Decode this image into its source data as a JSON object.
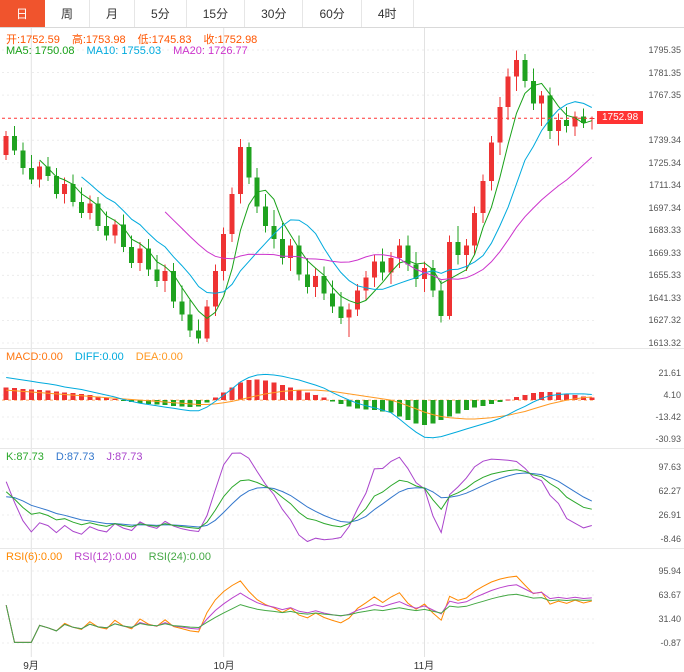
{
  "tabbar": {
    "tabs": [
      {
        "id": "day",
        "label": "日",
        "active": true
      },
      {
        "id": "week",
        "label": "周",
        "active": false
      },
      {
        "id": "month",
        "label": "月",
        "active": false
      },
      {
        "id": "min5",
        "label": "5分",
        "active": false
      },
      {
        "id": "min15",
        "label": "15分",
        "active": false
      },
      {
        "id": "min30",
        "label": "30分",
        "active": false
      },
      {
        "id": "min60",
        "label": "60分",
        "active": false
      },
      {
        "id": "hour4",
        "label": "4时",
        "active": false
      }
    ]
  },
  "main_header": {
    "ohlc": {
      "open": "开:1752.59",
      "high": "高:1753.98",
      "low": "低:1745.83",
      "close": "收:1752.98"
    },
    "ma": {
      "ma5": "MA5: 1750.08",
      "ma10": "MA10: 1755.03",
      "ma20": "MA20: 1726.77"
    }
  },
  "macd_header": {
    "macd": "MACD:0.00",
    "diff": "DIFF:0.00",
    "dea": "DEA:0.00"
  },
  "kdj_header": {
    "k": "K:87.73",
    "d": "D:87.73",
    "j": "J:87.73"
  },
  "rsi_header": {
    "rsi6": "RSI(6):0.00",
    "rsi12": "RSI(12):0.00",
    "rsi24": "RSI(24):0.00"
  },
  "colors": {
    "tab_active_bg": "#f0542d",
    "up": "#ee3333",
    "down": "#1fa21f",
    "ohlc_text": "#ff5500",
    "ma5": "#18a118",
    "ma10": "#00aadd",
    "ma20": "#cc33cc",
    "macd_text": "#ff7711",
    "diff": "#00aadd",
    "dea": "#ff9922",
    "k": "#2ba82b",
    "d": "#3377cc",
    "j": "#aa44cc",
    "rsi6": "#ff8800",
    "rsi12": "#bb44cc",
    "rsi24": "#44a844",
    "price_line": "#ff3333",
    "price_tag_bg": "#ff3333",
    "zero_line": "#ffaa66",
    "grid": "#ececec",
    "month_grid": "#e2e2e2",
    "axis_text": "#555555"
  },
  "chart_data": {
    "type": "candlestick",
    "timeframe": "日",
    "last_price": 1752.98,
    "last_price_label": "1752.98",
    "price_axis": [
      1795.35,
      1781.35,
      1767.35,
      1739.34,
      1725.34,
      1711.34,
      1697.34,
      1683.33,
      1669.33,
      1655.33,
      1641.33,
      1627.32,
      1613.32
    ],
    "x_axis": {
      "month_markers": [
        {
          "label": "9月",
          "index": 3
        },
        {
          "label": "10月",
          "index": 26
        },
        {
          "label": "11月",
          "index": 50
        }
      ]
    },
    "ma_periods": [
      5,
      10,
      20
    ],
    "candles": {
      "ohlc": [
        [
          1730,
          1745,
          1727,
          1742
        ],
        [
          1742,
          1748,
          1730,
          1733
        ],
        [
          1733,
          1738,
          1718,
          1722
        ],
        [
          1722,
          1730,
          1712,
          1715
        ],
        [
          1715,
          1726,
          1710,
          1723
        ],
        [
          1723,
          1729,
          1714,
          1717
        ],
        [
          1717,
          1722,
          1703,
          1706
        ],
        [
          1706,
          1716,
          1700,
          1712
        ],
        [
          1712,
          1718,
          1698,
          1701
        ],
        [
          1701,
          1710,
          1691,
          1694
        ],
        [
          1694,
          1705,
          1690,
          1700
        ],
        [
          1700,
          1704,
          1683,
          1686
        ],
        [
          1686,
          1695,
          1677,
          1680
        ],
        [
          1680,
          1690,
          1675,
          1687
        ],
        [
          1687,
          1693,
          1670,
          1673
        ],
        [
          1673,
          1680,
          1660,
          1663
        ],
        [
          1663,
          1676,
          1658,
          1672
        ],
        [
          1672,
          1678,
          1655,
          1659
        ],
        [
          1659,
          1668,
          1648,
          1652
        ],
        [
          1652,
          1662,
          1645,
          1658
        ],
        [
          1658,
          1663,
          1635,
          1639
        ],
        [
          1639,
          1649,
          1627,
          1631
        ],
        [
          1631,
          1640,
          1617,
          1621
        ],
        [
          1621,
          1628,
          1613,
          1616
        ],
        [
          1616,
          1640,
          1614,
          1636
        ],
        [
          1636,
          1662,
          1630,
          1658
        ],
        [
          1658,
          1685,
          1652,
          1681
        ],
        [
          1681,
          1710,
          1676,
          1706
        ],
        [
          1706,
          1740,
          1700,
          1735
        ],
        [
          1735,
          1738,
          1712,
          1716
        ],
        [
          1716,
          1722,
          1694,
          1698
        ],
        [
          1698,
          1706,
          1682,
          1686
        ],
        [
          1686,
          1696,
          1672,
          1678
        ],
        [
          1678,
          1688,
          1662,
          1666
        ],
        [
          1666,
          1678,
          1658,
          1674
        ],
        [
          1674,
          1680,
          1652,
          1656
        ],
        [
          1656,
          1666,
          1644,
          1648
        ],
        [
          1648,
          1660,
          1642,
          1655
        ],
        [
          1655,
          1661,
          1640,
          1644
        ],
        [
          1644,
          1652,
          1632,
          1636
        ],
        [
          1636,
          1645,
          1625,
          1629
        ],
        [
          1629,
          1638,
          1617,
          1634
        ],
        [
          1634,
          1650,
          1630,
          1646
        ],
        [
          1646,
          1658,
          1640,
          1654
        ],
        [
          1654,
          1668,
          1648,
          1664
        ],
        [
          1664,
          1672,
          1652,
          1657
        ],
        [
          1657,
          1670,
          1650,
          1666
        ],
        [
          1666,
          1678,
          1660,
          1674
        ],
        [
          1674,
          1680,
          1658,
          1662
        ],
        [
          1662,
          1670,
          1648,
          1653
        ],
        [
          1653,
          1664,
          1645,
          1660
        ],
        [
          1660,
          1665,
          1642,
          1646
        ],
        [
          1646,
          1652,
          1626,
          1630
        ],
        [
          1630,
          1680,
          1628,
          1676
        ],
        [
          1676,
          1686,
          1662,
          1668
        ],
        [
          1668,
          1678,
          1658,
          1674
        ],
        [
          1674,
          1698,
          1668,
          1694
        ],
        [
          1694,
          1718,
          1688,
          1714
        ],
        [
          1714,
          1742,
          1708,
          1738
        ],
        [
          1738,
          1766,
          1730,
          1760
        ],
        [
          1760,
          1784,
          1752,
          1779
        ],
        [
          1779,
          1795,
          1770,
          1789
        ],
        [
          1789,
          1793,
          1772,
          1776
        ],
        [
          1776,
          1784,
          1758,
          1762
        ],
        [
          1762,
          1770,
          1748,
          1767
        ],
        [
          1767,
          1772,
          1740,
          1745
        ],
        [
          1745,
          1756,
          1736,
          1752
        ],
        [
          1752,
          1760,
          1744,
          1748
        ],
        [
          1748,
          1757,
          1742,
          1754
        ],
        [
          1754,
          1759,
          1747,
          1750
        ],
        [
          1752.59,
          1753.98,
          1745.83,
          1752.98
        ]
      ]
    },
    "macd": {
      "axis": [
        21.61,
        4.1,
        -13.42,
        -30.93
      ],
      "diff": [
        18,
        17,
        16,
        15,
        14,
        13,
        12,
        10.5,
        9.5,
        8.5,
        7,
        5.5,
        4,
        2.5,
        0.5,
        -1,
        -2.5,
        -3.5,
        -4.5,
        -5.5,
        -6.5,
        -7.5,
        -8.5,
        -8.5,
        -5.5,
        -1,
        4,
        9,
        14.5,
        18,
        20,
        20.5,
        20,
        19,
        17.5,
        16,
        14,
        12,
        9.5,
        6,
        3,
        0,
        -2.5,
        -4.5,
        -6,
        -8,
        -10,
        -15,
        -20.5,
        -25.5,
        -29.5,
        -30,
        -29,
        -27,
        -25,
        -23,
        -21,
        -19,
        -17,
        -14.5,
        -11.5,
        -8,
        -5,
        -1.5,
        1.5,
        3.5,
        4.5,
        5,
        5,
        5,
        4.5
      ],
      "dea": [
        8,
        7.5,
        7,
        6.5,
        6,
        5.5,
        5,
        4.5,
        4,
        3.5,
        3,
        2.5,
        2,
        1.5,
        1,
        0.5,
        0,
        -0.5,
        -1,
        -1.5,
        -2,
        -2.5,
        -3,
        -3.5,
        -3.5,
        -3,
        -2,
        -1,
        0.5,
        2,
        3.5,
        5,
        6,
        7,
        7.5,
        8,
        8,
        8,
        7.5,
        7,
        6,
        5,
        4,
        3,
        2,
        1,
        0,
        -2,
        -4.5,
        -7,
        -9.5,
        -11.5,
        -13,
        -14,
        -14.5,
        -15,
        -15,
        -14.5,
        -14,
        -13,
        -12,
        -10.5,
        -9,
        -7,
        -5,
        -3,
        -1.5,
        0,
        1,
        2,
        2.5
      ]
    },
    "kdj": {
      "axis": [
        97.63,
        62.27,
        26.91,
        -8.46
      ],
      "params": [
        9,
        3,
        3
      ]
    },
    "rsi": {
      "axis": [
        95.94,
        63.67,
        31.4,
        -0.87
      ],
      "periods": [
        6,
        12,
        24
      ]
    }
  }
}
